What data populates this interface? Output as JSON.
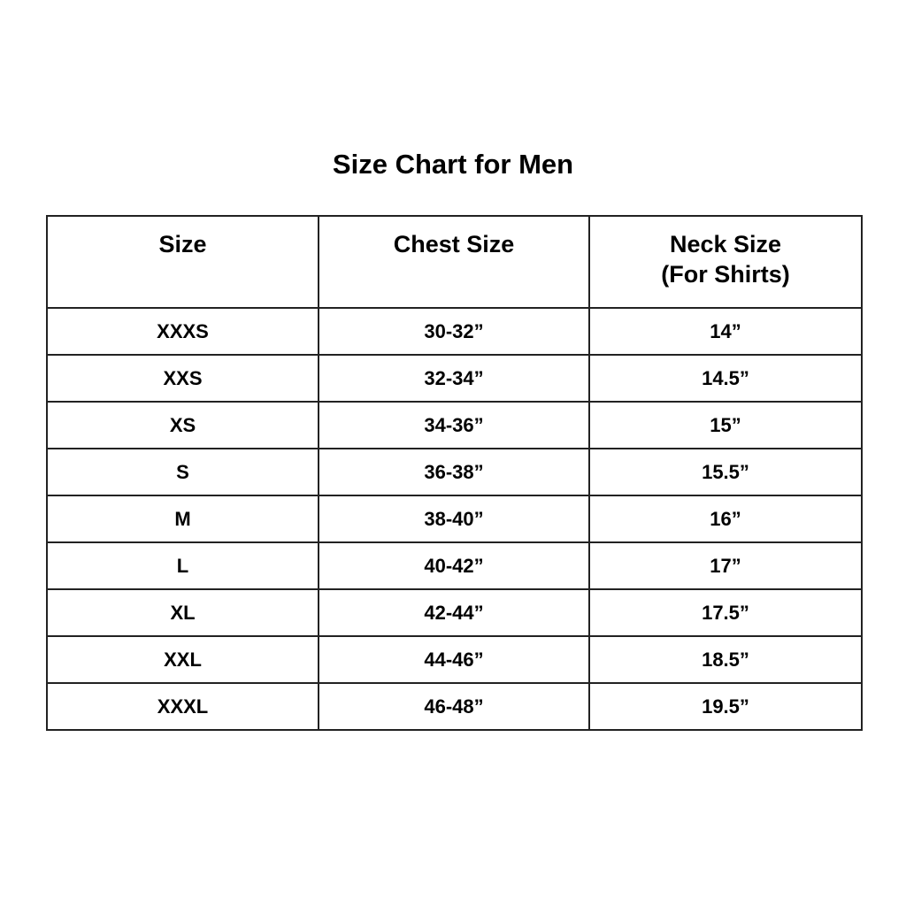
{
  "title": "Size Chart for Men",
  "headers": {
    "size": "Size",
    "chest": "Chest Size",
    "neck": "Neck Size",
    "neck_sub": "(For Shirts)"
  },
  "rows": [
    {
      "size": "XXXS",
      "chest": "30-32”",
      "neck": "14”"
    },
    {
      "size": "XXS",
      "chest": "32-34”",
      "neck": "14.5”"
    },
    {
      "size": "XS",
      "chest": "34-36”",
      "neck": "15”"
    },
    {
      "size": "S",
      "chest": "36-38”",
      "neck": "15.5”"
    },
    {
      "size": "M",
      "chest": "38-40”",
      "neck": "16”"
    },
    {
      "size": "L",
      "chest": "40-42”",
      "neck": "17”"
    },
    {
      "size": "XL",
      "chest": "42-44”",
      "neck": "17.5”"
    },
    {
      "size": "XXL",
      "chest": "44-46”",
      "neck": "18.5”"
    },
    {
      "size": "XXXL",
      "chest": "46-48”",
      "neck": "19.5”"
    }
  ]
}
